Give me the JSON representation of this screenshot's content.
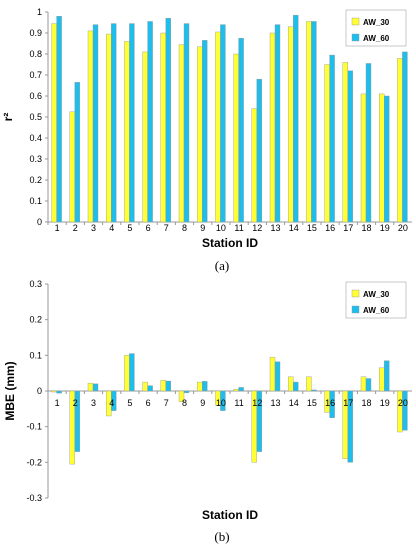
{
  "chart_data": [
    {
      "type": "bar",
      "caption": "(a)",
      "xlabel": "Station ID",
      "ylabel": "r²",
      "ylim": [
        0,
        1.0
      ],
      "yticks": [
        "0",
        "0.1",
        "0.2",
        "0.3",
        "0.4",
        "0.5",
        "0.6",
        "0.7",
        "0.8",
        "0.9",
        "1"
      ],
      "yticks_values": [
        0,
        0.1,
        0.2,
        0.3,
        0.4,
        0.5,
        0.6,
        0.7,
        0.8,
        0.9,
        1.0
      ],
      "categories": [
        "1",
        "2",
        "3",
        "4",
        "5",
        "6",
        "7",
        "8",
        "9",
        "10",
        "11",
        "12",
        "13",
        "14",
        "15",
        "16",
        "17",
        "18",
        "19",
        "20"
      ],
      "legend_position": "top-right",
      "grid": false,
      "series": [
        {
          "name": "AW_30",
          "color": "#FFFF33",
          "values": [
            0.945,
            0.525,
            0.91,
            0.895,
            0.86,
            0.81,
            0.9,
            0.845,
            0.835,
            0.905,
            0.8,
            0.54,
            0.9,
            0.93,
            0.955,
            0.75,
            0.76,
            0.61,
            0.61,
            0.78
          ]
        },
        {
          "name": "AW_60",
          "color": "#1EBDEB",
          "values": [
            0.98,
            0.665,
            0.94,
            0.945,
            0.945,
            0.955,
            0.97,
            0.945,
            0.865,
            0.94,
            0.875,
            0.68,
            0.94,
            0.985,
            0.955,
            0.795,
            0.72,
            0.755,
            0.6,
            0.81
          ]
        }
      ]
    },
    {
      "type": "bar",
      "caption": "(b)",
      "xlabel": "Station ID",
      "ylabel": "MBE (mm)",
      "ylim": [
        -0.3,
        0.3
      ],
      "yticks": [
        "-0.3",
        "-0.2",
        "-0.1",
        "0",
        "0.1",
        "0.2",
        "0.3"
      ],
      "yticks_values": [
        -0.3,
        -0.2,
        -0.1,
        0,
        0.1,
        0.2,
        0.3
      ],
      "categories": [
        "1",
        "2",
        "3",
        "4",
        "5",
        "6",
        "7",
        "8",
        "9",
        "10",
        "11",
        "12",
        "13",
        "14",
        "15",
        "16",
        "17",
        "18",
        "19",
        "20"
      ],
      "legend_position": "top-right",
      "grid": false,
      "series": [
        {
          "name": "AW_30",
          "color": "#FFFF33",
          "values": [
            -0.003,
            -0.205,
            0.022,
            -0.07,
            0.1,
            0.025,
            0.03,
            -0.03,
            0.025,
            -0.04,
            0.005,
            -0.2,
            0.095,
            0.04,
            0.04,
            -0.06,
            -0.19,
            0.04,
            0.065,
            -0.115
          ]
        },
        {
          "name": "AW_60",
          "color": "#1EBDEB",
          "values": [
            -0.006,
            -0.17,
            0.02,
            -0.055,
            0.105,
            0.015,
            0.028,
            -0.005,
            0.027,
            -0.055,
            0.01,
            -0.17,
            0.082,
            0.025,
            0.003,
            -0.075,
            -0.2,
            0.035,
            0.085,
            -0.11
          ]
        }
      ]
    }
  ]
}
